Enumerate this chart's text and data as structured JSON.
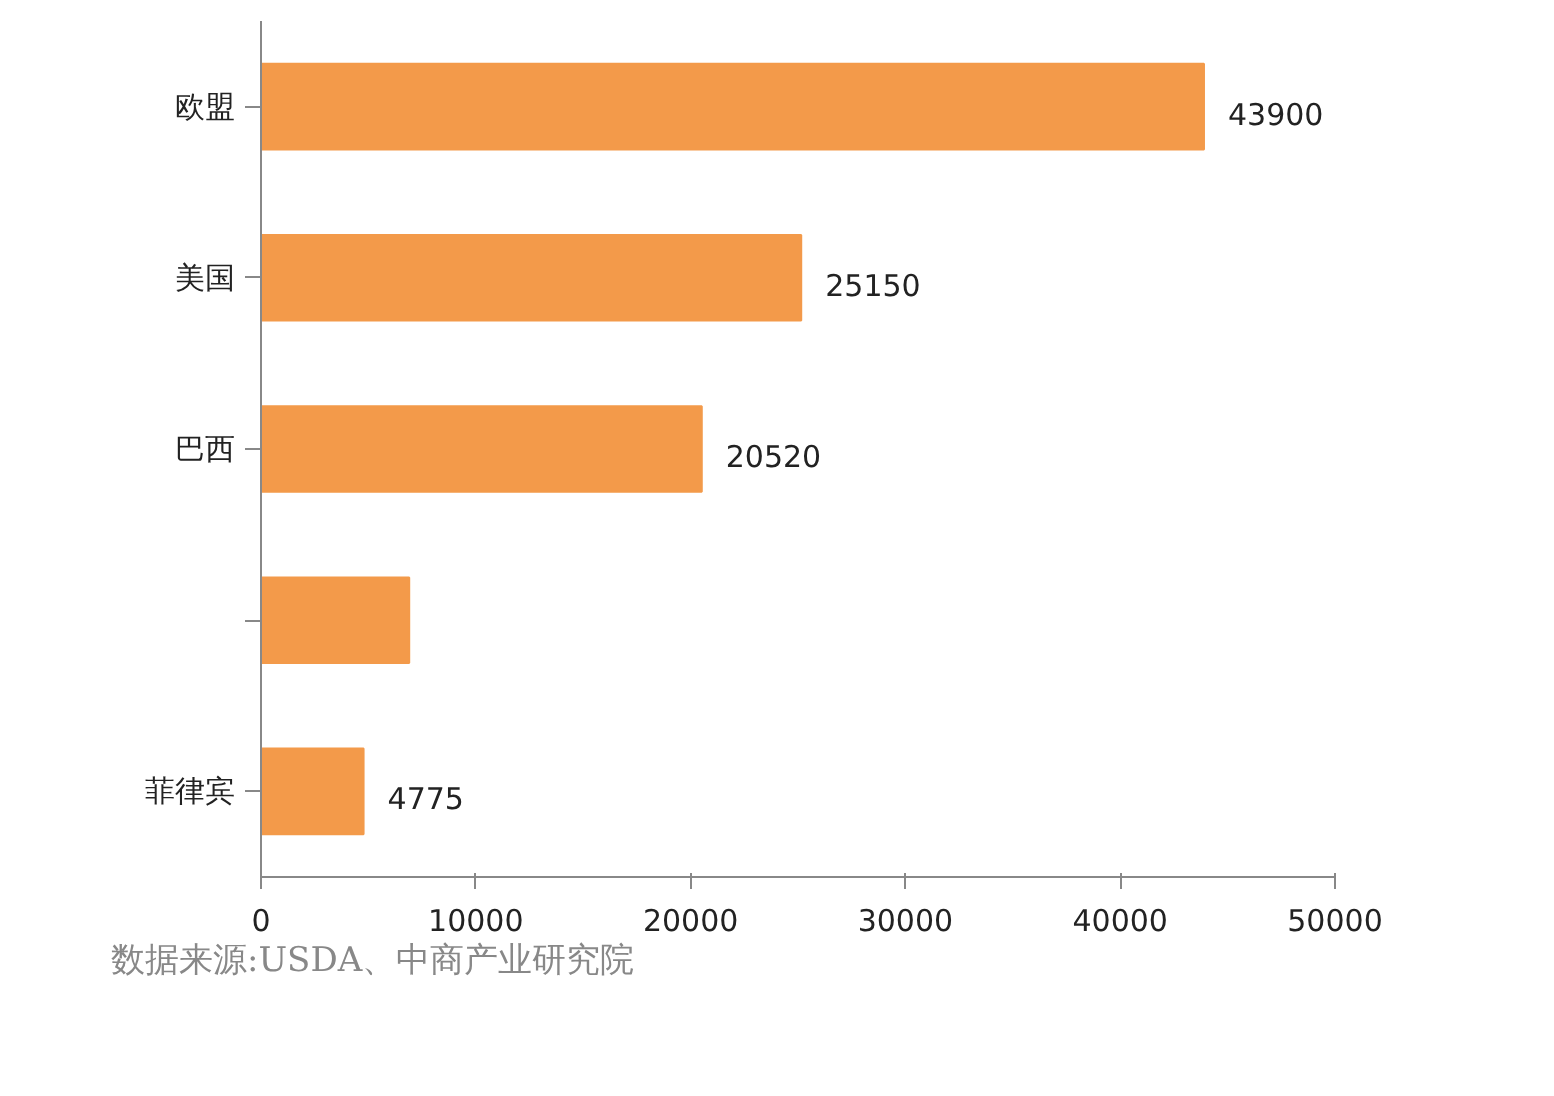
{
  "chart_data": {
    "type": "bar",
    "orientation": "horizontal",
    "categories": [
      "欧盟",
      "美国",
      "巴西",
      null,
      "菲律宾"
    ],
    "values": [
      43900,
      25150,
      20520,
      6900,
      4775
    ],
    "value_labels": [
      "43900",
      "25150",
      "20520",
      null,
      "4775"
    ],
    "color": "#f39a4a",
    "xlim": [
      0,
      50000
    ],
    "xticks": [
      0,
      10000,
      20000,
      30000,
      40000,
      50000
    ],
    "grid": false,
    "annotations": [
      "数据来源:USDA、中商产业研究院"
    ]
  }
}
